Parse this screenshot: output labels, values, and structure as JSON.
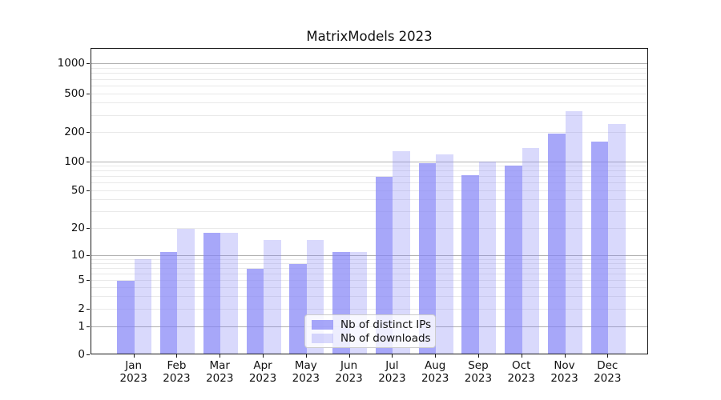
{
  "chart_data": {
    "type": "bar",
    "title": "MatrixModels 2023",
    "categories": [
      "Jan",
      "Feb",
      "Mar",
      "Apr",
      "May",
      "Jun",
      "Jul",
      "Aug",
      "Sep",
      "Oct",
      "Nov",
      "Dec"
    ],
    "category_sublabel": "2023",
    "series": [
      {
        "name": "Nb of distinct IPs",
        "color": "#8282f6",
        "alpha": 0.7,
        "values": [
          5,
          11,
          18,
          7,
          8,
          11,
          70,
          97,
          73,
          92,
          195,
          163
        ]
      },
      {
        "name": "Nb of downloads",
        "color": "#8282f6",
        "alpha": 0.3,
        "values": [
          9,
          20,
          18,
          15,
          15,
          11,
          130,
          120,
          100,
          140,
          335,
          245
        ]
      }
    ],
    "xlabel": "",
    "ylabel": "",
    "yaxis": {
      "scale": "symlog",
      "ticks": [
        0,
        1,
        2,
        5,
        10,
        20,
        50,
        100,
        200,
        500,
        1000
      ],
      "major_gridlines": [
        1,
        10,
        100,
        1000
      ],
      "minor_gridlines": [
        2,
        3,
        4,
        5,
        6,
        7,
        8,
        9,
        20,
        30,
        40,
        50,
        60,
        70,
        80,
        90,
        200,
        300,
        400,
        500,
        600,
        700,
        800,
        900
      ],
      "ylim": [
        0,
        1450
      ]
    },
    "legend": {
      "position": "lower-center"
    },
    "grid": true
  },
  "colors": {
    "bar_base": "#8282f6",
    "bar_dark_rendered": "#a9a9f9",
    "bar_light_rendered": "#dbdbfa",
    "major_grid": "#b1b1b1",
    "minor_grid": "#e9e9e9",
    "spine": "#1a1a1a",
    "background": "#ffffff"
  }
}
